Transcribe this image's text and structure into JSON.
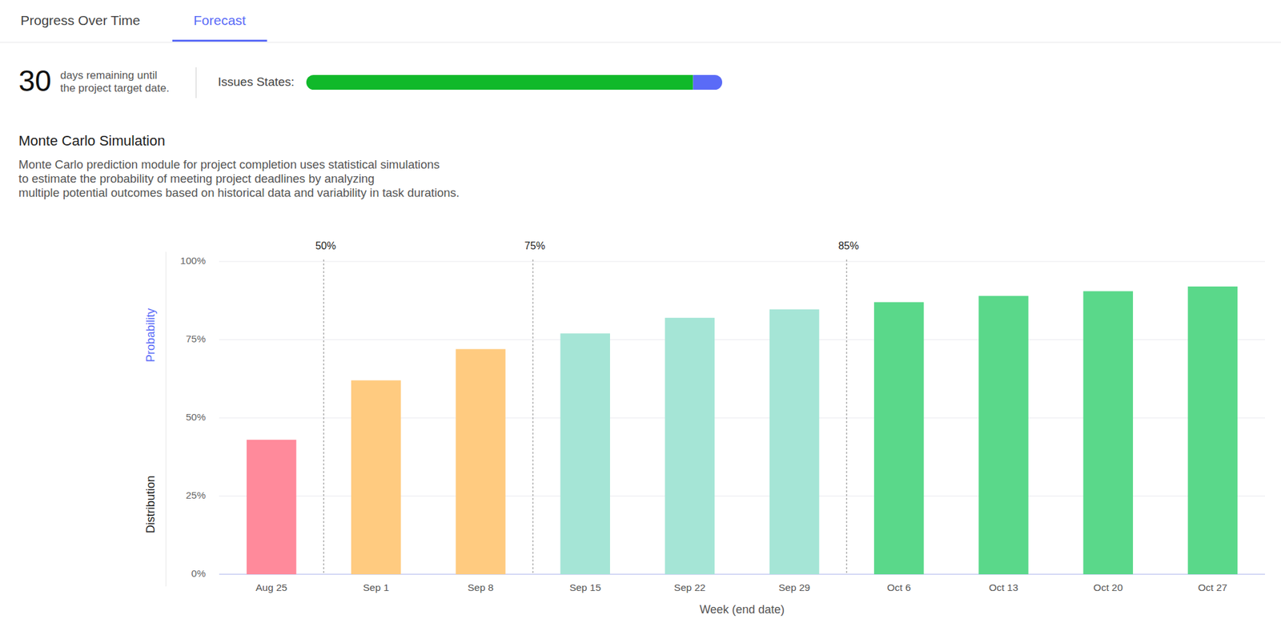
{
  "tabs": [
    {
      "label": "Progress Over Time",
      "active": false
    },
    {
      "label": "Forecast",
      "active": true
    }
  ],
  "header": {
    "days_remaining": 30,
    "days_text": [
      "days remaining until",
      "the project target date."
    ],
    "issues_label": "Issues States:",
    "issues_states": [
      {
        "color": "#10b92a",
        "value": 93
      },
      {
        "color": "#5a6bf7",
        "value": 7
      }
    ]
  },
  "section": {
    "title": "Monte Carlo Simulation",
    "description": [
      "Monte Carlo prediction module for project completion uses statistical simulations",
      "to estimate the probability of meeting project deadlines by analyzing",
      "multiple potential outcomes based on historical data and variability in task durations."
    ]
  },
  "chart_data": {
    "type": "bar",
    "categories": [
      "Aug 25",
      "Sep 1",
      "Sep 8",
      "Sep 15",
      "Sep 22",
      "Sep 29",
      "Oct 6",
      "Oct 13",
      "Oct 20",
      "Oct 27"
    ],
    "values": [
      43,
      62,
      72,
      77,
      82,
      84.7,
      87,
      89,
      90.5,
      92
    ],
    "colors": [
      "#ff8a9b",
      "#ffcb80",
      "#ffcb80",
      "#a5e5d6",
      "#a5e5d6",
      "#a5e5d6",
      "#5ad88a",
      "#5ad88a",
      "#5ad88a",
      "#5ad88a"
    ],
    "ylim": [
      0,
      100
    ],
    "yticks": [
      {
        "value": 0,
        "label": "0%"
      },
      {
        "value": 25,
        "label": "25%"
      },
      {
        "value": 50,
        "label": "50%"
      },
      {
        "value": 75,
        "label": "75%"
      },
      {
        "value": 100,
        "label": "100%"
      }
    ],
    "grid": true,
    "xlabel": "Week (end date)",
    "ylabel": "Probability",
    "distribution_label": "Distribution",
    "thresholds": [
      {
        "value": 50,
        "label": "50%"
      },
      {
        "value": 75,
        "label": "75%"
      },
      {
        "value": 85,
        "label": "85%"
      }
    ]
  }
}
